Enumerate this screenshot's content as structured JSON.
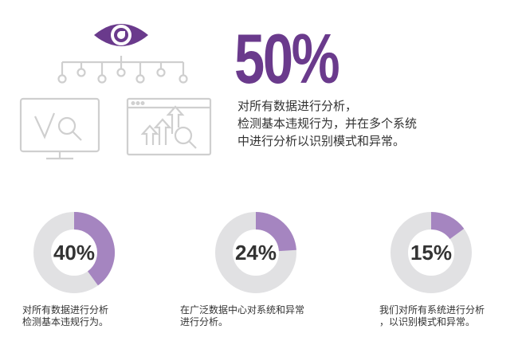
{
  "hero": {
    "stat": "50%",
    "stat_value": 50,
    "description_lines": [
      "对所有数据进行分析，",
      "检测基本违规行为，并在多个系统",
      "中进行分析以识别模式和异常。"
    ]
  },
  "colors": {
    "accent": "#6a3a8c",
    "donut_fill": "#a585c0",
    "donut_track": "#e1e1e3",
    "icon_gray": "#cfcfcf",
    "text": "#333333"
  },
  "icons": [
    "eye-icon",
    "network-nodes-icon",
    "monitor-check-magnifier-icon",
    "browser-chart-magnifier-icon"
  ],
  "chart_data": [
    {
      "type": "pie",
      "title": "",
      "value_label": "40%",
      "values": [
        40,
        60
      ],
      "caption_lines": [
        "对所有数据进行分析",
        "检测基本违规行为。"
      ]
    },
    {
      "type": "pie",
      "title": "",
      "value_label": "24%",
      "values": [
        24,
        76
      ],
      "caption_lines": [
        "在广泛数据中心对系统和异常",
        "进行分析。"
      ]
    },
    {
      "type": "pie",
      "title": "",
      "value_label": "15%",
      "values": [
        15,
        85
      ],
      "caption_lines": [
        "我们对所有系统进行分析",
        "，以识别模式和异常。"
      ]
    }
  ]
}
